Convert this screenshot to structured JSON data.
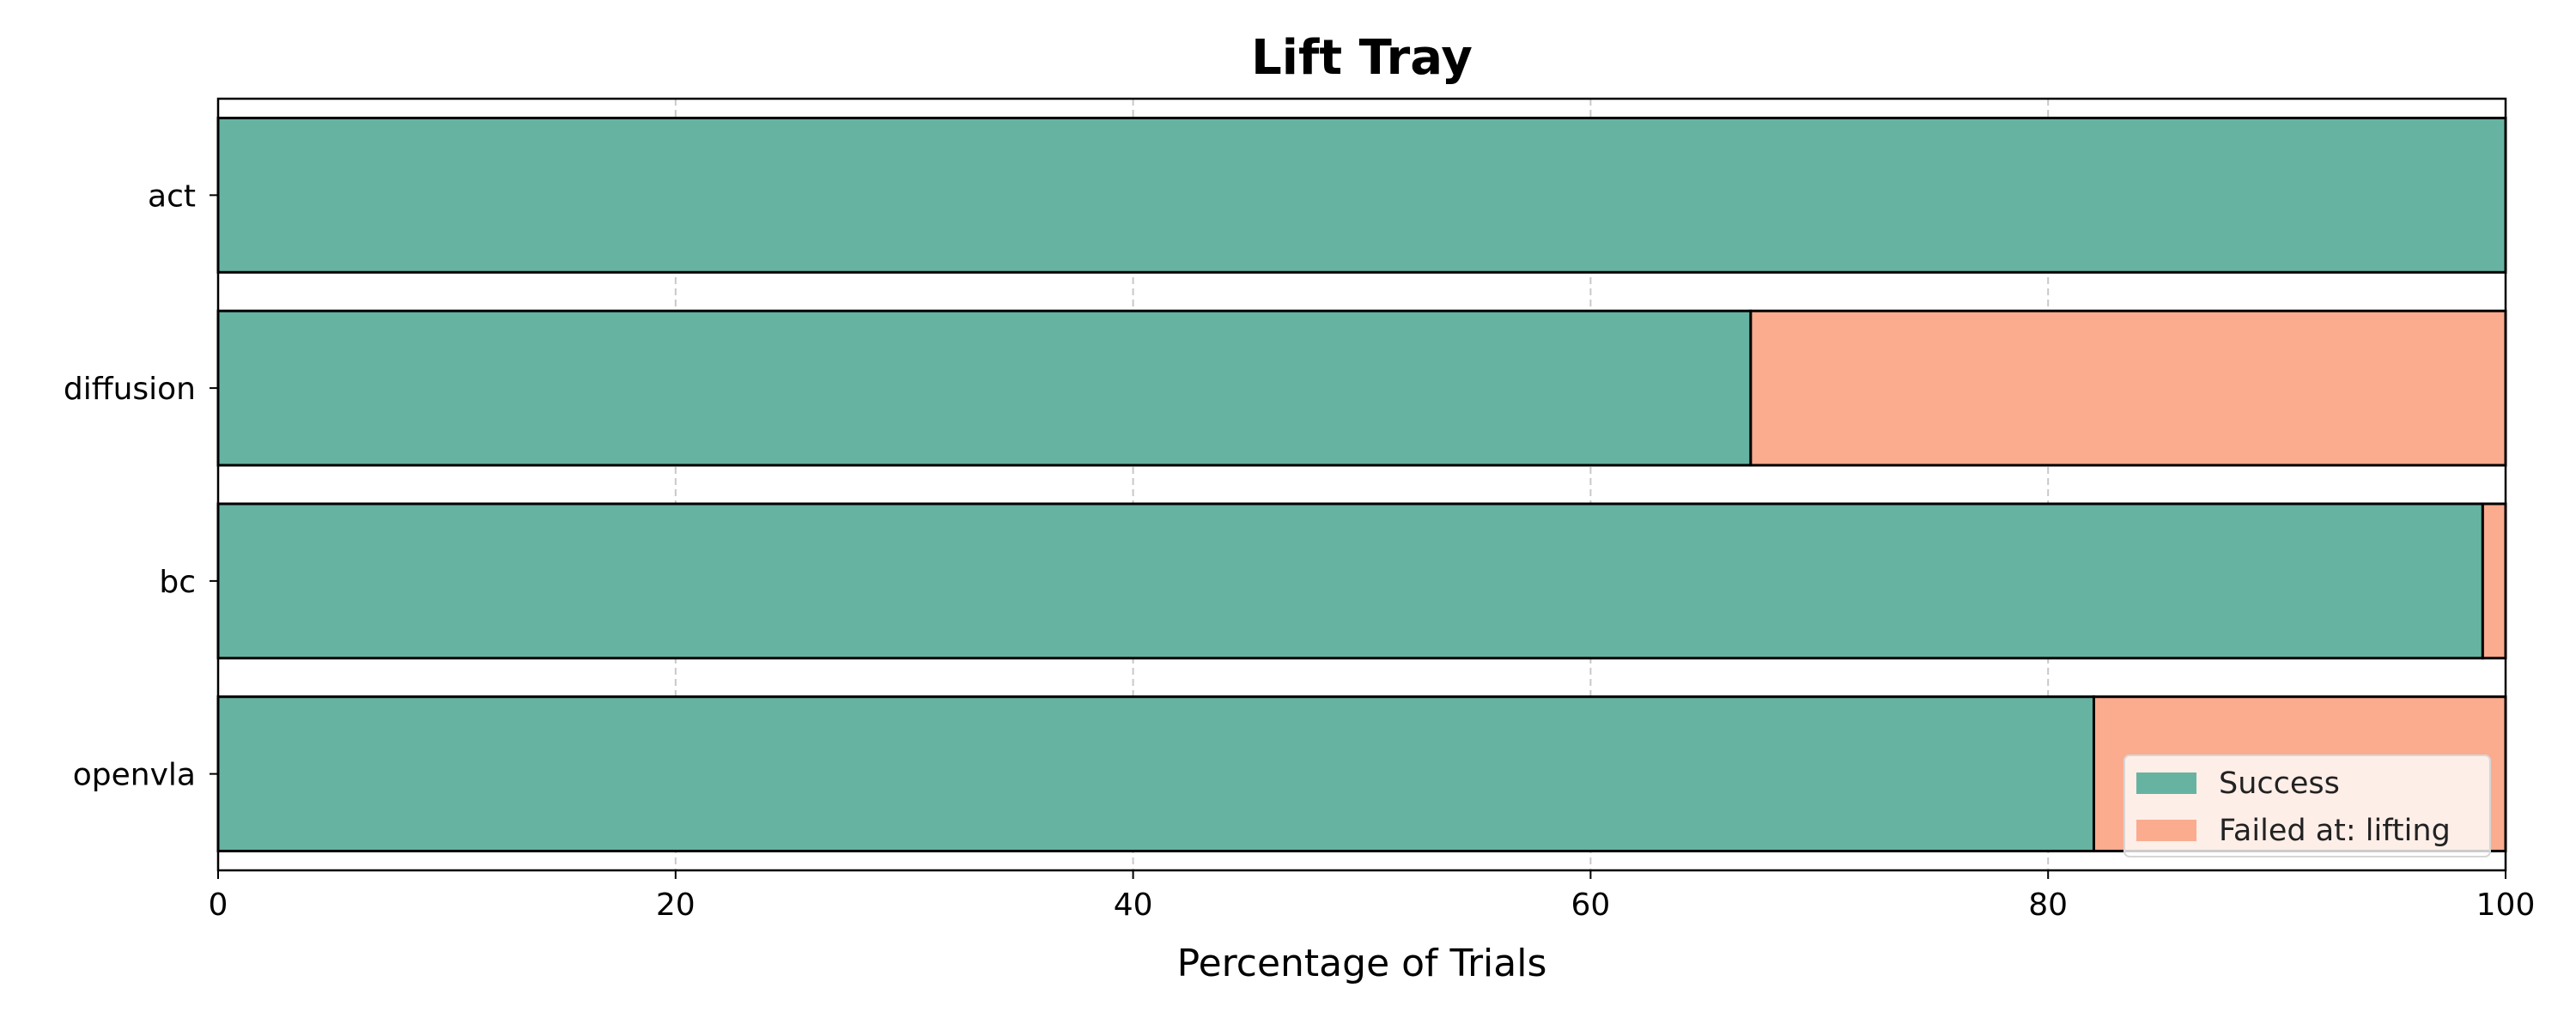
{
  "chart_data": {
    "type": "bar",
    "orientation": "horizontal",
    "stacked": true,
    "title": "Lift Tray",
    "xlabel": "Percentage of Trials",
    "ylabel": "",
    "categories": [
      "act",
      "diffusion",
      "bc",
      "openvla"
    ],
    "series": [
      {
        "name": "Success",
        "color": "#66b3a2",
        "values": [
          100,
          67,
          99,
          82
        ]
      },
      {
        "name": "Failed at: lifting",
        "color": "#fbab8e",
        "values": [
          0,
          33,
          1,
          18
        ]
      }
    ],
    "xlim": [
      0,
      100
    ],
    "xticks": [
      0,
      20,
      40,
      60,
      80,
      100
    ],
    "grid": "x-dashed",
    "legend_position": "bottom-right"
  }
}
